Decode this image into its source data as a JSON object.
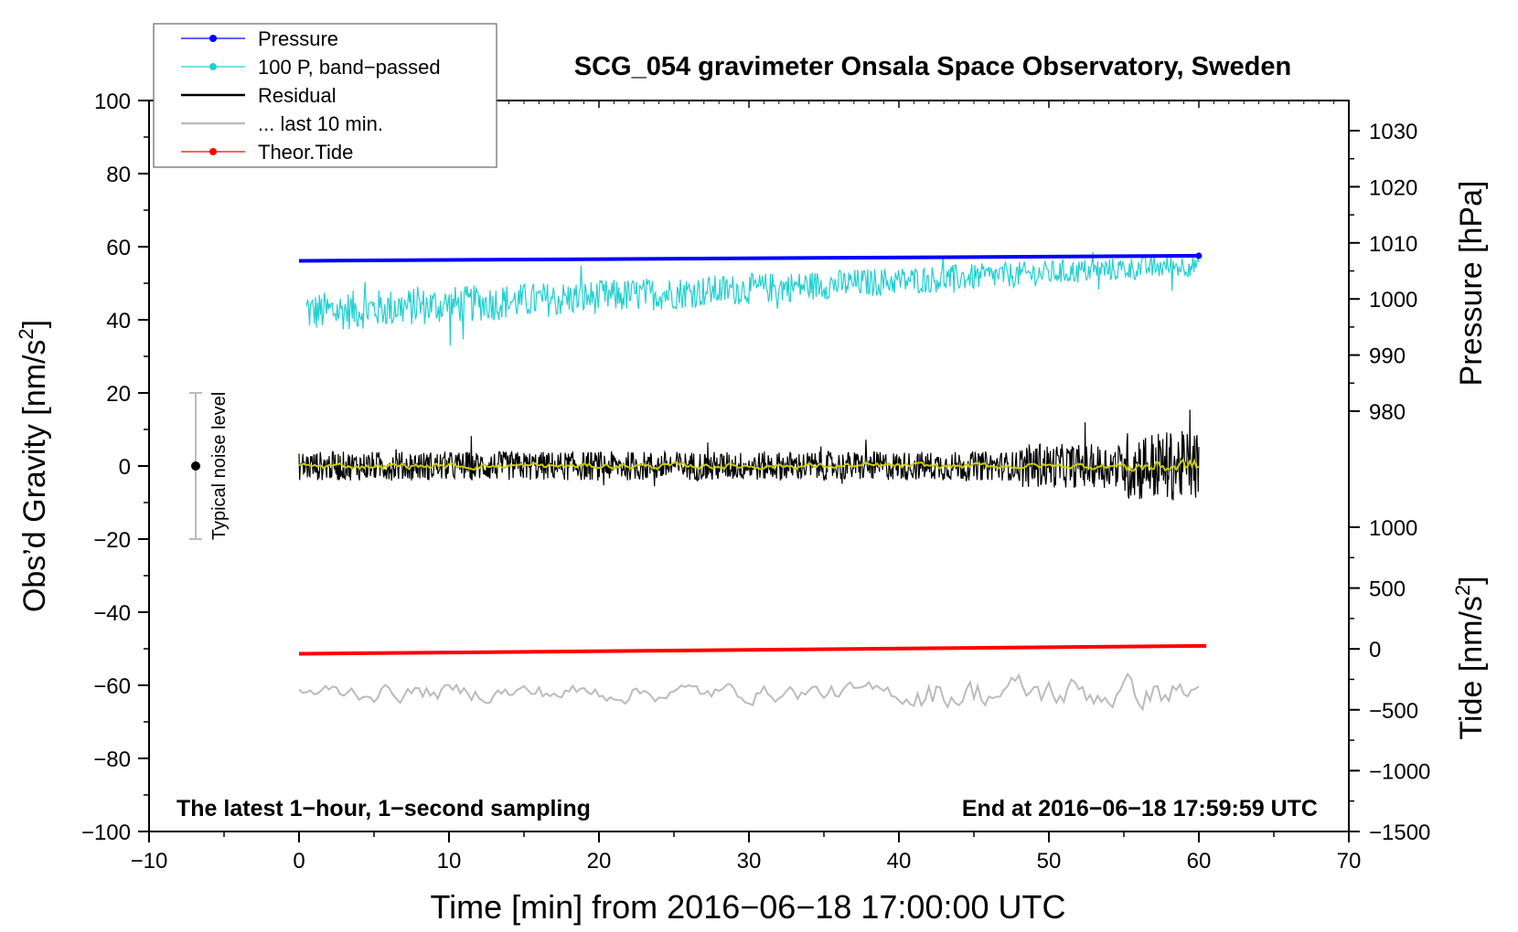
{
  "chart_data": {
    "type": "line",
    "title": "SCG_054 gravimeter Onsala Space Observatory, Sweden",
    "xlabel": "Time [min] from 2016−06−18 17:00:00 UTC",
    "ylabel_left": "Obs’d Gravity [nm/s",
    "ylabel_left_sup": "2",
    "ylabel_left_tail": "]",
    "ylabel_right_pressure": "Pressure [hPa]",
    "ylabel_right_tide": "Tide [nm/s",
    "ylabel_right_tide_sup": "2",
    "ylabel_right_tide_tail": "]",
    "xlim": [
      -10,
      70
    ],
    "ylim_left": [
      -100,
      100
    ],
    "pressure_range": [
      980,
      1030
    ],
    "tide_range": [
      -1500,
      1000
    ],
    "x_ticks": [
      "−10",
      "0",
      "10",
      "20",
      "30",
      "40",
      "50",
      "60",
      "70"
    ],
    "y_left_ticks": [
      "100",
      "80",
      "60",
      "40",
      "20",
      "0",
      "−20",
      "−40",
      "−60",
      "−80",
      "−100"
    ],
    "pressure_ticks": [
      "1030",
      "1020",
      "1010",
      "1000",
      "990",
      "980"
    ],
    "tide_ticks": [
      "1000",
      "500",
      "0",
      "−500",
      "−1000",
      "−1500"
    ],
    "legend": [
      {
        "label": "Pressure",
        "color": "#0000ff",
        "marker": "dot"
      },
      {
        "label": "100 P, band−passed",
        "color": "#20d0d0",
        "marker": "dot"
      },
      {
        "label": "Residual",
        "color": "#000000",
        "marker": "none"
      },
      {
        "label": "... last 10 min.",
        "color": "#bbbbbb",
        "marker": "none"
      },
      {
        "label": "Theor.Tide",
        "color": "#ff0000",
        "marker": "dot"
      }
    ],
    "legend_position": "top-left",
    "series": [
      {
        "name": "Pressure",
        "axis": "pressure",
        "color": "#0000ff",
        "x": [
          0,
          60
        ],
        "y": [
          1006.8,
          1007.7
        ]
      },
      {
        "name": "100 P, band−passed",
        "axis": "left",
        "color": "#20d0d0",
        "x_range": [
          0.5,
          60
        ],
        "baseline": [
          42,
          55
        ],
        "amplitude": 5
      },
      {
        "name": "Residual",
        "axis": "left",
        "color": "#000000",
        "x_range": [
          0,
          60
        ],
        "baseline": [
          0,
          0
        ],
        "amplitude": 4
      },
      {
        "name": "... last 10 min.",
        "axis": "left",
        "color": "#bbbbbb",
        "x_range": [
          0,
          60
        ],
        "baseline": [
          -62,
          -62
        ],
        "amplitude": 4
      },
      {
        "name": "Theor.Tide",
        "axis": "tide",
        "color": "#ff0000",
        "x": [
          0,
          60.5
        ],
        "y": [
          -40,
          25
        ]
      },
      {
        "name": "smoothed residual",
        "axis": "left",
        "color": "#cccc00",
        "x_range": [
          0,
          60
        ],
        "baseline": [
          0,
          0
        ],
        "amplitude": 1
      }
    ],
    "noise_bar": {
      "label": "Typical noise level",
      "x": -7,
      "y": 0,
      "range": [
        -20,
        20
      ]
    },
    "annotations": {
      "bottom_left": "The latest 1−hour, 1−second sampling",
      "bottom_right": "End at 2016−06−18 17:59:59 UTC"
    }
  }
}
